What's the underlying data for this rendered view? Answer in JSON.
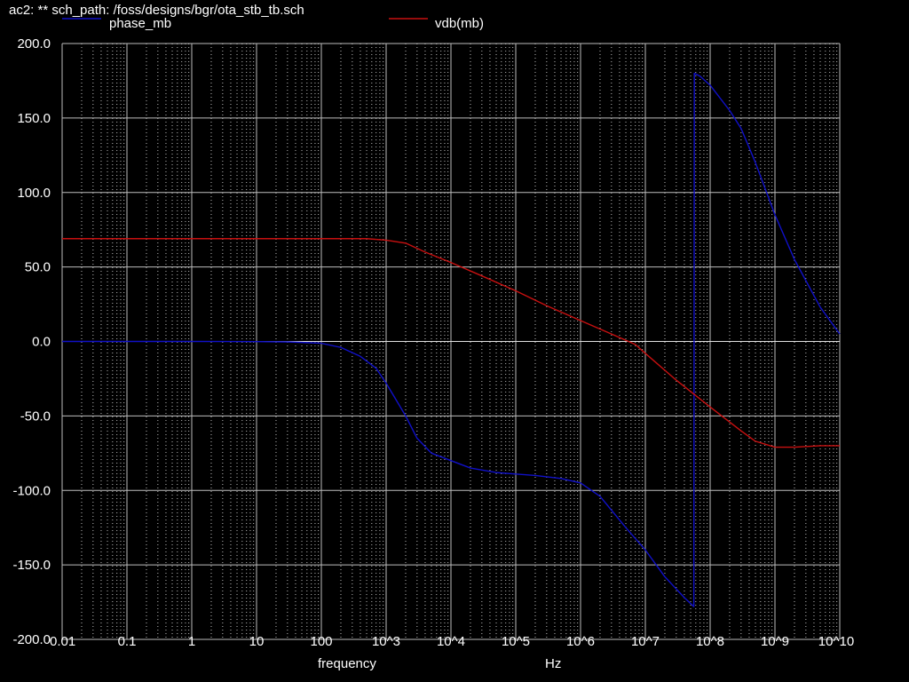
{
  "window_title": "ac2: ** sch_path: /foss/designs/bgr/ota_stb_tb.sch",
  "chart_data": {
    "type": "line",
    "xscale": "log",
    "xlim": [
      0.01,
      10000000000
    ],
    "ylim": [
      -200,
      200
    ],
    "xlabel": "frequency",
    "xunit": "Hz",
    "grid": true,
    "legend_position": "top",
    "x_tick_labels": [
      "0.01",
      "0.1",
      "1",
      "10",
      "100",
      "10^3",
      "10^4",
      "10^5",
      "10^6",
      "10^7",
      "10^8",
      "10^9",
      "10^10"
    ],
    "y_tick_labels": [
      "200.0",
      "150.0",
      "100.0",
      "50.0",
      "0.0",
      "-50.0",
      "-100.0",
      "-150.0",
      "-200.0"
    ],
    "series": [
      {
        "name": "phase_mb",
        "color": "#1010c8",
        "points": [
          [
            0.01,
            0
          ],
          [
            1,
            0
          ],
          [
            10,
            -0.1
          ],
          [
            30,
            -0.3
          ],
          [
            100,
            -1.2
          ],
          [
            200,
            -4
          ],
          [
            400,
            -10
          ],
          [
            700,
            -18
          ],
          [
            1000,
            -28
          ],
          [
            2000,
            -50
          ],
          [
            3000,
            -65
          ],
          [
            5000,
            -75
          ],
          [
            10000,
            -80
          ],
          [
            20000,
            -85
          ],
          [
            50000,
            -88
          ],
          [
            100000,
            -89
          ],
          [
            200000,
            -90
          ],
          [
            500000,
            -92
          ],
          [
            1000000,
            -95
          ],
          [
            2000000,
            -104
          ],
          [
            5000000,
            -125
          ],
          [
            10000000,
            -140
          ],
          [
            20000000,
            -158
          ],
          [
            40000000,
            -172
          ],
          [
            56000000,
            -178
          ],
          [
            57000000,
            180
          ],
          [
            70000000,
            178
          ],
          [
            100000000,
            172
          ],
          [
            200000000,
            155
          ],
          [
            300000000,
            143
          ],
          [
            500000000,
            120
          ],
          [
            1000000000,
            85
          ],
          [
            2000000000,
            55
          ],
          [
            5000000000,
            23
          ],
          [
            10000000000,
            5
          ]
        ]
      },
      {
        "name": "vdb(mb)",
        "color": "#c81010",
        "points": [
          [
            0.01,
            69
          ],
          [
            100,
            69
          ],
          [
            500,
            69
          ],
          [
            1000,
            68
          ],
          [
            2000,
            66
          ],
          [
            4000,
            60
          ],
          [
            10000,
            53
          ],
          [
            30000,
            44
          ],
          [
            100000,
            34
          ],
          [
            300000,
            24
          ],
          [
            1000000,
            14
          ],
          [
            3000000,
            5
          ],
          [
            7000000,
            -2
          ],
          [
            10000000,
            -8
          ],
          [
            30000000,
            -26
          ],
          [
            100000000,
            -44
          ],
          [
            300000000,
            -60
          ],
          [
            500000000,
            -67
          ],
          [
            1000000000,
            -71
          ],
          [
            2000000000,
            -71
          ],
          [
            5000000000,
            -70
          ],
          [
            10000000000,
            -70
          ]
        ]
      }
    ]
  }
}
